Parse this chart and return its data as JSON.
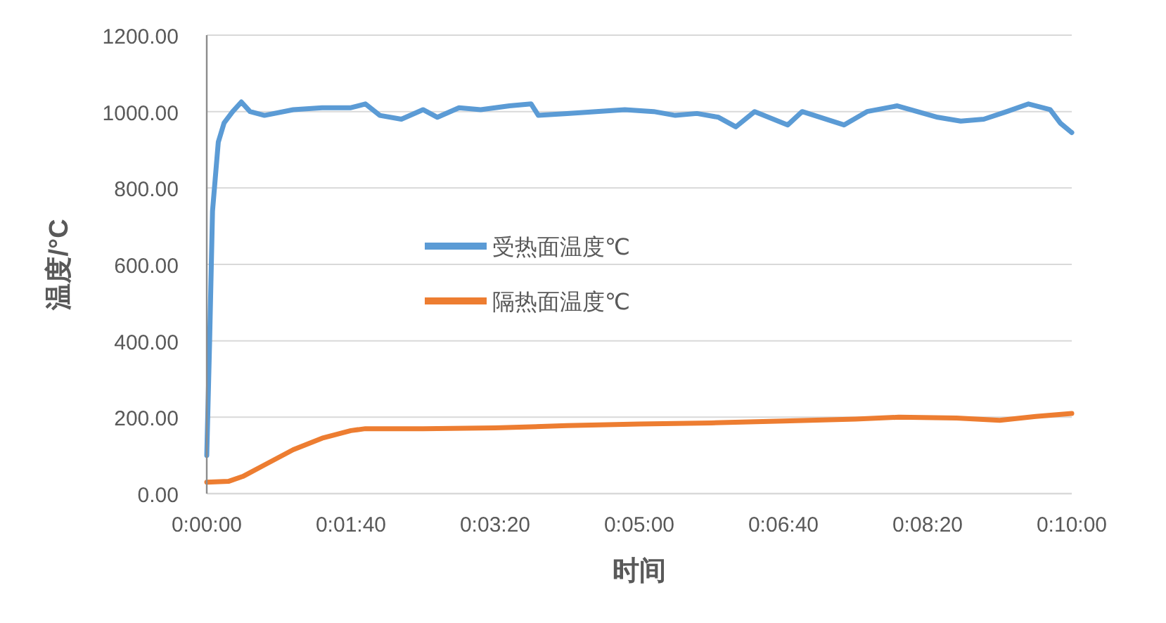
{
  "chart_data": {
    "type": "line",
    "xlabel": "时间",
    "ylabel": "温度/°C",
    "xlim": [
      0,
      600
    ],
    "xticks": [
      {
        "value": 0,
        "label": "0:00:00"
      },
      {
        "value": 100,
        "label": "0:01:40"
      },
      {
        "value": 200,
        "label": "0:03:20"
      },
      {
        "value": 300,
        "label": "0:05:00"
      },
      {
        "value": 400,
        "label": "0:06:40"
      },
      {
        "value": 500,
        "label": "0:08:20"
      },
      {
        "value": 600,
        "label": "0:10:00"
      }
    ],
    "ylim": [
      0,
      1200
    ],
    "yticks": [
      {
        "value": 0,
        "label": "0.00"
      },
      {
        "value": 200,
        "label": "200.00"
      },
      {
        "value": 400,
        "label": "400.00"
      },
      {
        "value": 600,
        "label": "600.00"
      },
      {
        "value": 800,
        "label": "800.00"
      },
      {
        "value": 1000,
        "label": "1000.00"
      },
      {
        "value": 1200,
        "label": "1200.00"
      }
    ],
    "grid": "y",
    "legend": "center",
    "marker": "none",
    "line_style": "solid",
    "series": [
      {
        "name": "受热面温度℃",
        "color": "#5b9bd5",
        "x": [
          0,
          2,
          4,
          8,
          12,
          18,
          24,
          30,
          40,
          60,
          80,
          100,
          110,
          120,
          135,
          150,
          160,
          175,
          190,
          210,
          225,
          230,
          250,
          270,
          290,
          310,
          325,
          340,
          355,
          367,
          380,
          403,
          413,
          442,
          458,
          479,
          507,
          523,
          539,
          555,
          570,
          585,
          592,
          600
        ],
        "values": [
          100,
          400,
          740,
          920,
          970,
          1000,
          1025,
          1000,
          990,
          1005,
          1010,
          1010,
          1020,
          990,
          980,
          1005,
          985,
          1010,
          1005,
          1015,
          1020,
          990,
          995,
          1000,
          1005,
          1000,
          990,
          995,
          985,
          960,
          1000,
          965,
          1000,
          965,
          1000,
          1015,
          985,
          975,
          980,
          1000,
          1020,
          1005,
          970,
          945
        ]
      },
      {
        "name": "隔热面温度℃",
        "color": "#ed7d31",
        "x": [
          0,
          15,
          25,
          40,
          60,
          80,
          100,
          110,
          150,
          200,
          250,
          300,
          350,
          400,
          450,
          480,
          520,
          550,
          575,
          600
        ],
        "values": [
          30,
          32,
          45,
          75,
          115,
          145,
          165,
          170,
          170,
          172,
          178,
          182,
          185,
          190,
          195,
          200,
          198,
          192,
          202,
          210
        ]
      }
    ]
  }
}
